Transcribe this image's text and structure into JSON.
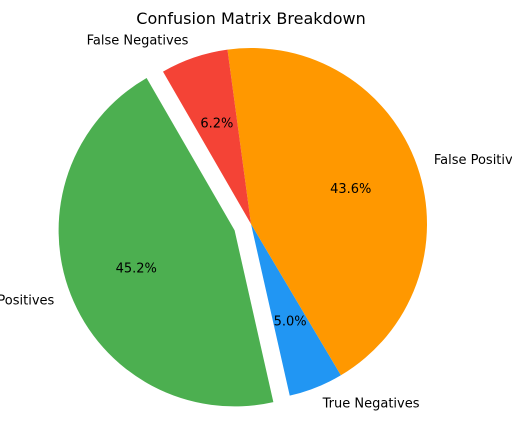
{
  "chart_data": {
    "type": "pie",
    "title": "Confusion Matrix Breakdown",
    "start_angle_deg": 120,
    "counterclockwise": true,
    "slices": [
      {
        "label": "True Positives",
        "value": 45.2,
        "pct_label": "45.2%",
        "color": "#4caf50",
        "exploded": true
      },
      {
        "label": "True Negatives",
        "value": 5.0,
        "pct_label": "5.0%",
        "color": "#2196f3",
        "exploded": false
      },
      {
        "label": "False Positives",
        "value": 43.6,
        "pct_label": "43.6%",
        "color": "#ff9800",
        "exploded": false
      },
      {
        "label": "False Negatives",
        "value": 6.2,
        "pct_label": "6.2%",
        "color": "#f44336",
        "exploded": false
      }
    ]
  }
}
